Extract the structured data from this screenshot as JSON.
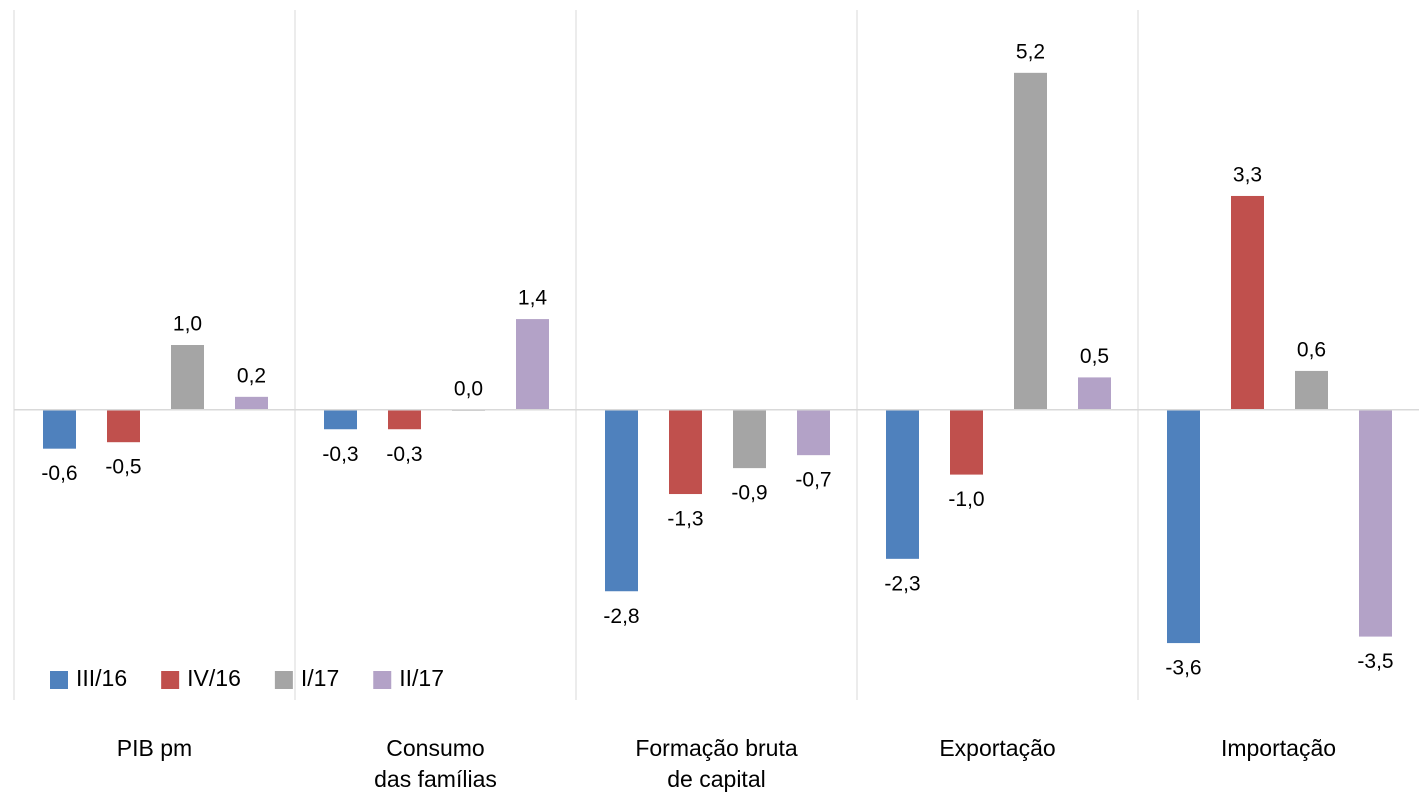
{
  "chart_data": {
    "type": "bar",
    "categories": [
      "PIB pm",
      "Consumo\ndas famílias",
      "Formação bruta\nde capital",
      "Exportação",
      "Importação"
    ],
    "series": [
      {
        "name": "III/16",
        "color": "#4f81bd",
        "values": [
          -0.6,
          -0.3,
          -2.8,
          -2.3,
          -3.6
        ],
        "value_labels": [
          "-0,6",
          "-0,3",
          "-2,8",
          "-2,3",
          "-3,6"
        ]
      },
      {
        "name": "IV/16",
        "color": "#c0504d",
        "values": [
          -0.5,
          -0.3,
          -1.3,
          -1.0,
          3.3
        ],
        "value_labels": [
          "-0,5",
          "-0,3",
          "-1,3",
          "-1,0",
          "3,3"
        ]
      },
      {
        "name": "I/17",
        "color": "#a5a5a5",
        "values": [
          1.0,
          0.0,
          -0.9,
          5.2,
          0.6
        ],
        "value_labels": [
          "1,0",
          "0,0",
          "-0,9",
          "5,2",
          "0,6"
        ]
      },
      {
        "name": "II/17",
        "color": "#b3a2c7",
        "values": [
          0.2,
          1.4,
          -0.7,
          0.5,
          -3.5
        ],
        "value_labels": [
          "0,2",
          "1,4",
          "-0,7",
          "0,5",
          "-3,5"
        ]
      }
    ],
    "ylim": [
      -4,
      6
    ],
    "legend": "bottom-left"
  }
}
